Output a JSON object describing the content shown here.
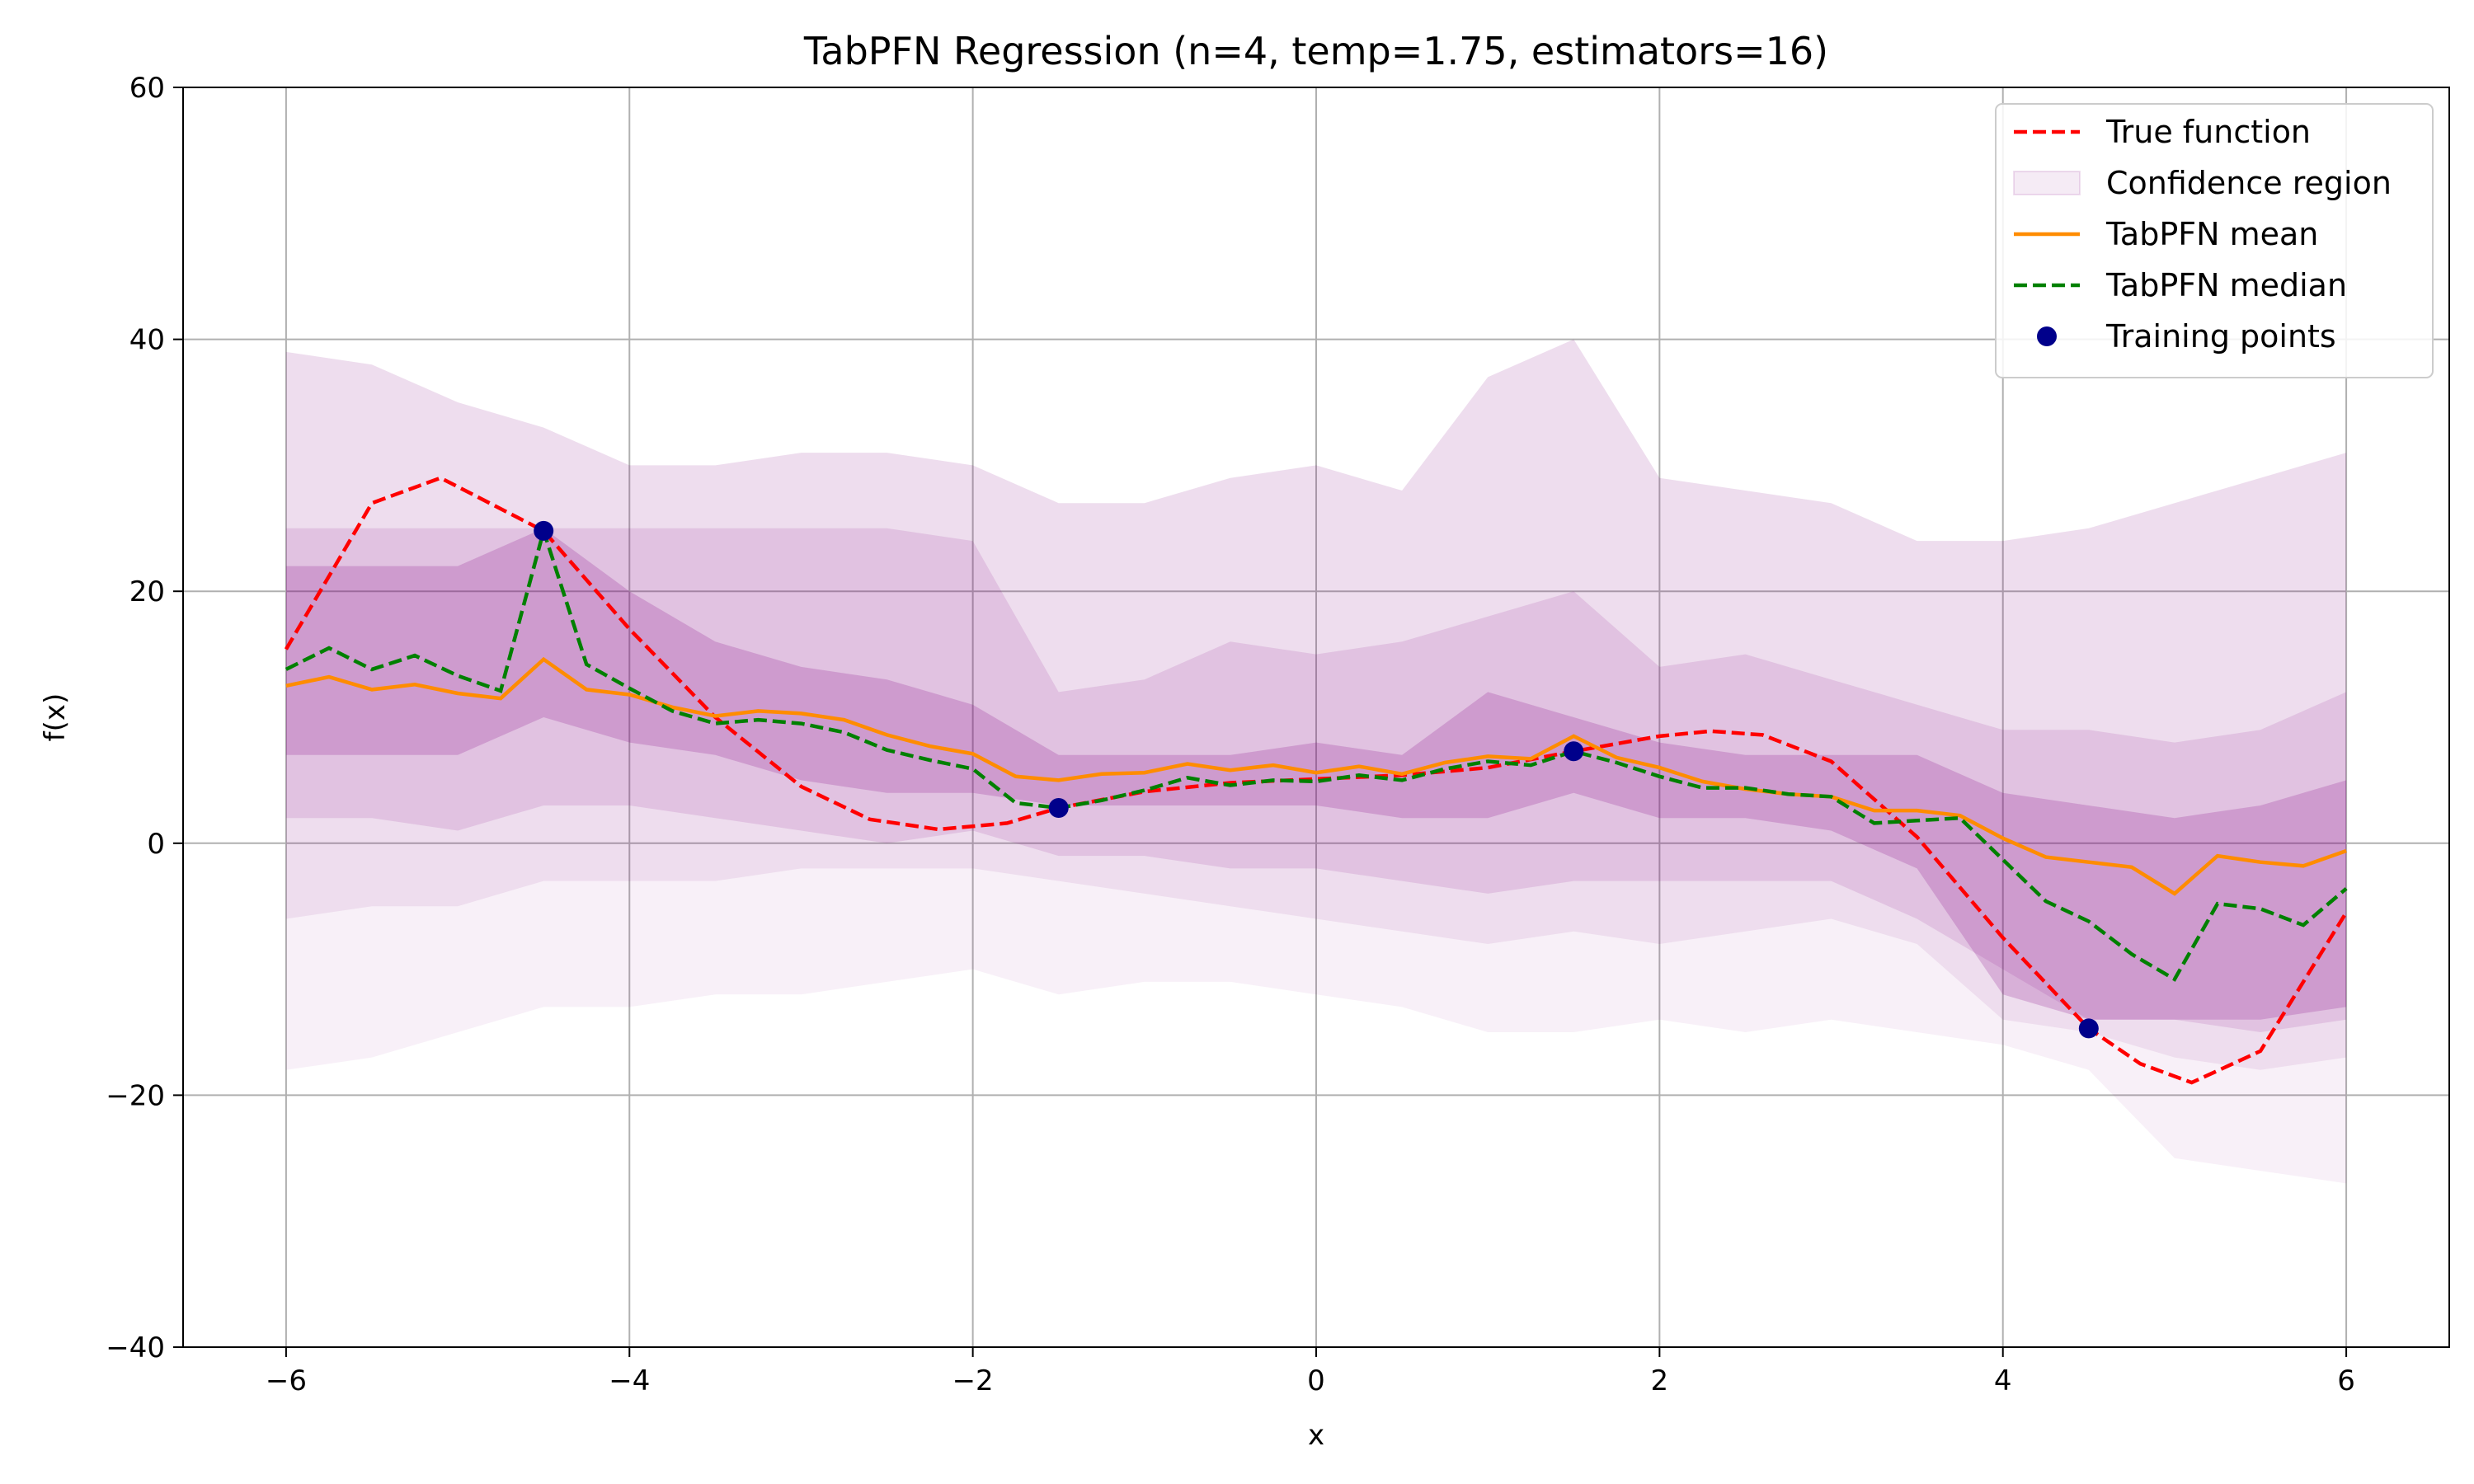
{
  "chart_data": {
    "type": "line",
    "title": "TabPFN Regression (n=4, temp=1.75, estimators=16)",
    "xlabel": "x",
    "ylabel": "f(x)",
    "xlim": [
      -6.6,
      6.6
    ],
    "ylim": [
      -40,
      60
    ],
    "xticks": [
      -6,
      -4,
      -2,
      0,
      2,
      4,
      6
    ],
    "yticks": [
      -40,
      -20,
      0,
      20,
      40,
      60
    ],
    "grid": true,
    "legend_position": "top-right",
    "colors": {
      "true_function": "#ff0000",
      "confidence": "#800080",
      "mean": "#ff8c00",
      "median": "#008000",
      "points": "#00008b",
      "grid": "#b0b0b0"
    },
    "legend": [
      {
        "label": "True function",
        "kind": "dashed",
        "color": "#ff0000"
      },
      {
        "label": "Confidence region",
        "kind": "patch",
        "color": "#800080"
      },
      {
        "label": "TabPFN mean",
        "kind": "solid",
        "color": "#ff8c00"
      },
      {
        "label": "TabPFN median",
        "kind": "dashed",
        "color": "#008000"
      },
      {
        "label": "Training points",
        "kind": "dot",
        "color": "#00008b"
      }
    ],
    "training_points": {
      "x": [
        -4.5,
        -1.5,
        1.5,
        4.5
      ],
      "y": [
        24.8,
        2.8,
        7.3,
        -14.7
      ]
    },
    "true_function": {
      "x": [
        -6,
        -5.5,
        -5.1,
        -4.5,
        -4,
        -3.5,
        -3,
        -2.6,
        -2.2,
        -1.8,
        -1.5,
        -1,
        -0.5,
        0,
        0.5,
        1,
        1.5,
        2,
        2.3,
        2.6,
        3,
        3.5,
        4,
        4.5,
        4.8,
        5.1,
        5.5,
        6
      ],
      "y": [
        15.4,
        27,
        29,
        24.8,
        17,
        10,
        4.5,
        1.9,
        1.1,
        1.6,
        2.8,
        4.1,
        4.8,
        5.1,
        5.4,
        6,
        7.3,
        8.5,
        8.9,
        8.6,
        6.5,
        0.5,
        -7.5,
        -14.7,
        -17.5,
        -19,
        -16.5,
        -5.5
      ]
    },
    "confidence_bands": {
      "x": [
        -6,
        -5.5,
        -5,
        -4.5,
        -4,
        -3.5,
        -3,
        -2.5,
        -2,
        -1.5,
        -1,
        -0.5,
        0,
        0.5,
        1,
        1.5,
        2,
        2.5,
        3,
        3.5,
        4,
        4.5,
        5,
        5.5,
        6
      ],
      "bands": [
        {
          "opacity": 0.06,
          "lower": [
            -18,
            -17,
            -15,
            -13,
            -13,
            -12,
            -12,
            -11,
            -10,
            -12,
            -11,
            -11,
            -12,
            -13,
            -15,
            -15,
            -14,
            -15,
            -14,
            -15,
            -16,
            -18,
            -25,
            -26,
            -27
          ],
          "upper": [
            39,
            38,
            35,
            33,
            30,
            30,
            31,
            31,
            30,
            27,
            27,
            29,
            30,
            28,
            37,
            40,
            29,
            28,
            27,
            24,
            24,
            25,
            27,
            29,
            31
          ]
        },
        {
          "opacity": 0.08,
          "lower": [
            -6,
            -5,
            -5,
            -3,
            -3,
            -3,
            -2,
            -2,
            -2,
            -3,
            -4,
            -5,
            -6,
            -7,
            -8,
            -7,
            -8,
            -7,
            -6,
            -8,
            -14,
            -15,
            -17,
            -18,
            -17
          ]
        },
        {
          "opacity": 0.12,
          "lower": [
            2,
            2,
            1,
            3,
            3,
            2,
            1,
            0,
            1,
            -1,
            -1,
            -2,
            -2,
            -3,
            -4,
            -3,
            -3,
            -3,
            -3,
            -6,
            -10,
            -14,
            -14,
            -15,
            -14
          ],
          "upper": [
            25,
            25,
            25,
            25,
            25,
            25,
            25,
            25,
            24,
            12,
            13,
            16,
            15,
            16,
            18,
            20,
            14,
            15,
            13,
            11,
            9,
            9,
            8,
            9,
            12
          ]
        },
        {
          "opacity": 0.2,
          "lower": [
            7,
            7,
            7,
            10,
            8,
            7,
            5,
            4,
            4,
            3,
            3,
            3,
            3,
            2,
            2,
            4,
            2,
            2,
            1,
            -2,
            -12,
            -14,
            -14,
            -14,
            -13
          ],
          "upper": [
            22,
            22,
            22,
            25,
            20,
            16,
            14,
            13,
            11,
            7,
            7,
            7,
            8,
            7,
            12,
            10,
            8,
            7,
            7,
            7,
            4,
            3,
            2,
            3,
            5
          ]
        }
      ]
    },
    "series": [
      {
        "name": "TabPFN mean",
        "x": [
          -6,
          -5.75,
          -5.5,
          -5.25,
          -5,
          -4.75,
          -4.5,
          -4.25,
          -4,
          -3.75,
          -3.5,
          -3.25,
          -3,
          -2.75,
          -2.5,
          -2.25,
          -2,
          -1.75,
          -1.5,
          -1.25,
          -1,
          -0.75,
          -0.5,
          -0.25,
          0,
          0.25,
          0.5,
          0.75,
          1,
          1.25,
          1.5,
          1.75,
          2,
          2.25,
          2.5,
          2.75,
          3,
          3.25,
          3.5,
          3.75,
          4,
          4.25,
          4.5,
          4.75,
          5,
          5.25,
          5.5,
          5.75,
          6
        ],
        "y": [
          12.5,
          13.2,
          12.2,
          12.6,
          11.9,
          11.5,
          14.6,
          12.2,
          11.8,
          10.8,
          10.1,
          10.5,
          10.3,
          9.8,
          8.6,
          7.7,
          7.1,
          5.3,
          5.0,
          5.5,
          5.6,
          6.3,
          5.8,
          6.2,
          5.6,
          6.1,
          5.5,
          6.4,
          6.9,
          6.7,
          8.5,
          6.8,
          6.0,
          4.9,
          4.3,
          3.9,
          3.7,
          2.6,
          2.6,
          2.2,
          0.4,
          -1.1,
          -1.5,
          -1.9,
          -4.0,
          -1.0,
          -1.5,
          -1.8,
          -0.6
        ]
      },
      {
        "name": "TabPFN median",
        "x": [
          -6,
          -5.75,
          -5.5,
          -5.25,
          -5,
          -4.75,
          -4.5,
          -4.25,
          -4,
          -3.75,
          -3.5,
          -3.25,
          -3,
          -2.75,
          -2.5,
          -2.25,
          -2,
          -1.75,
          -1.5,
          -1.25,
          -1,
          -0.75,
          -0.5,
          -0.25,
          0,
          0.25,
          0.5,
          0.75,
          1,
          1.25,
          1.5,
          1.75,
          2,
          2.25,
          2.5,
          2.75,
          3,
          3.25,
          3.5,
          3.75,
          4,
          4.25,
          4.5,
          4.75,
          5,
          5.25,
          5.5,
          5.75,
          6
        ],
        "y": [
          13.8,
          15.5,
          13.8,
          14.9,
          13.3,
          12.1,
          24.8,
          14.2,
          12.3,
          10.5,
          9.5,
          9.8,
          9.5,
          8.8,
          7.4,
          6.6,
          5.9,
          3.2,
          2.8,
          3.4,
          4.2,
          5.2,
          4.6,
          5.0,
          4.9,
          5.4,
          5.0,
          5.9,
          6.5,
          6.2,
          7.3,
          6.4,
          5.3,
          4.4,
          4.4,
          3.9,
          3.7,
          1.6,
          1.8,
          2.0,
          -1.3,
          -4.6,
          -6.2,
          -8.8,
          -10.8,
          -4.8,
          -5.2,
          -6.5,
          -3.6
        ]
      }
    ]
  }
}
